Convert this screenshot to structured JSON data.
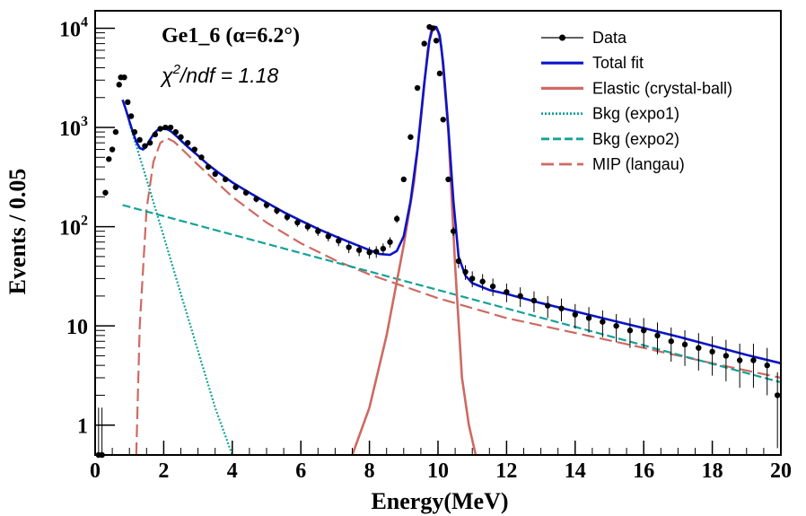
{
  "chart_data": {
    "type": "line",
    "annotations": {
      "title": "Ge1_6 (α=6.2°)",
      "chi2_prefix": "χ",
      "chi2_sup": "2",
      "chi2_rest": "/ndf = 1.18"
    },
    "xlabel": "Energy(MeV)",
    "ylabel": "Events / 0.05",
    "xlim": [
      0,
      20
    ],
    "ylim": [
      0.5,
      15000
    ],
    "yscale": "log",
    "x_ticks": [
      0,
      2,
      4,
      6,
      8,
      10,
      12,
      14,
      16,
      18,
      20
    ],
    "x_tick_labels": [
      "0",
      "2",
      "4",
      "6",
      "8",
      "10",
      "12",
      "14",
      "16",
      "18",
      "20"
    ],
    "y_ticks": [
      {
        "value": 1,
        "base": "1",
        "exp": ""
      },
      {
        "value": 10,
        "base": "10",
        "exp": ""
      },
      {
        "value": 100,
        "base": "10",
        "exp": "2"
      },
      {
        "value": 1000,
        "base": "10",
        "exp": "3"
      },
      {
        "value": 10000,
        "base": "10",
        "exp": "4"
      }
    ],
    "legend_position": "top-right",
    "colors": {
      "data": "#000000",
      "total": "#0a14c8",
      "elastic": "#cd6a62",
      "bkg1": "#13a296",
      "bkg2": "#13a296",
      "mip": "#cd6a62"
    },
    "series": [
      {
        "name": "Data",
        "style": "points",
        "key": "data",
        "x": [
          0.1,
          0.2,
          0.3,
          0.4,
          0.5,
          0.6,
          0.7,
          0.75,
          0.85,
          0.95,
          1.05,
          1.15,
          1.3,
          1.45,
          1.6,
          1.75,
          1.9,
          2.05,
          2.2,
          2.35,
          2.5,
          2.7,
          2.9,
          3.1,
          3.3,
          3.5,
          3.8,
          4.1,
          4.4,
          4.7,
          5.0,
          5.3,
          5.6,
          5.9,
          6.2,
          6.5,
          6.8,
          7.1,
          7.4,
          7.7,
          8.0,
          8.2,
          8.4,
          8.6,
          8.8,
          9.0,
          9.2,
          9.4,
          9.6,
          9.75,
          9.85,
          9.95,
          10.05,
          10.15,
          10.3,
          10.45,
          10.6,
          10.8,
          11.0,
          11.3,
          11.6,
          12.0,
          12.4,
          12.8,
          13.2,
          13.6,
          14.0,
          14.4,
          14.8,
          15.2,
          15.6,
          16.0,
          16.4,
          16.8,
          17.2,
          17.6,
          18.0,
          18.4,
          18.8,
          19.2,
          19.6,
          19.9
        ],
        "y": [
          0.5,
          0.5,
          220,
          480,
          600,
          900,
          2700,
          3200,
          3200,
          1800,
          1300,
          900,
          750,
          650,
          700,
          850,
          970,
          1000,
          1000,
          900,
          800,
          700,
          600,
          500,
          400,
          340,
          300,
          250,
          220,
          190,
          165,
          145,
          125,
          110,
          100,
          90,
          80,
          72,
          62,
          58,
          55,
          56,
          60,
          70,
          120,
          300,
          800,
          2500,
          7000,
          10300,
          10000,
          7500,
          3500,
          1200,
          300,
          90,
          45,
          35,
          30,
          28,
          25,
          22,
          20,
          18,
          16,
          15,
          13,
          12,
          11,
          10,
          9,
          9,
          8,
          7,
          6.5,
          6,
          5.5,
          5,
          4.5,
          4.5,
          4,
          2
        ]
      },
      {
        "name": "Total fit",
        "style": "solid",
        "key": "total",
        "x": [
          0.8,
          0.9,
          1.0,
          1.1,
          1.2,
          1.3,
          1.4,
          1.5,
          1.6,
          1.7,
          1.8,
          1.9,
          2.0,
          2.1,
          2.2,
          2.3,
          2.4,
          2.5,
          2.7,
          3.0,
          3.3,
          3.6,
          4.0,
          4.5,
          5.0,
          5.5,
          6.0,
          6.5,
          7.0,
          7.5,
          8.0,
          8.3,
          8.6,
          8.8,
          9.0,
          9.2,
          9.4,
          9.6,
          9.75,
          9.85,
          9.95,
          10.05,
          10.15,
          10.3,
          10.45,
          10.6,
          10.8,
          11.0,
          11.5,
          12.0,
          13.0,
          14.0,
          15.0,
          16.0,
          17.0,
          18.0,
          19.0,
          20.0
        ],
        "y": [
          1900,
          1500,
          1150,
          900,
          720,
          620,
          600,
          650,
          750,
          850,
          930,
          960,
          970,
          960,
          920,
          860,
          800,
          740,
          640,
          520,
          420,
          350,
          280,
          220,
          175,
          140,
          115,
          95,
          80,
          68,
          58,
          53,
          52,
          57,
          80,
          180,
          600,
          2800,
          7500,
          10200,
          10300,
          8500,
          4500,
          1000,
          180,
          50,
          32,
          27,
          23,
          21,
          17,
          14,
          11.5,
          9.5,
          7.8,
          6.3,
          5.1,
          4.2
        ]
      },
      {
        "name": "Elastic (crystal-ball)",
        "style": "solid",
        "key": "elastic",
        "x": [
          7.5,
          8.0,
          8.5,
          9.0,
          9.3,
          9.5,
          9.7,
          9.8,
          9.9,
          10.0,
          10.1,
          10.3,
          10.5,
          10.7,
          10.9,
          11.1
        ],
        "y": [
          0.5,
          1.5,
          8,
          65,
          280,
          1200,
          6000,
          9500,
          10400,
          9300,
          6500,
          900,
          40,
          3,
          1,
          0.5
        ]
      },
      {
        "name": "Bkg (expo1)",
        "style": "dotted",
        "key": "bkg1",
        "x": [
          1.0,
          1.5,
          2.0,
          2.5,
          3.0,
          3.5,
          4.0
        ],
        "y": [
          1100,
          300,
          80,
          21,
          5.6,
          1.5,
          0.4
        ]
      },
      {
        "name": "Bkg (expo2)",
        "style": "dashed",
        "key": "bkg2",
        "x": [
          0.8,
          20.0
        ],
        "y": [
          165,
          2.7
        ]
      },
      {
        "name": "MIP (langau)",
        "style": "longdash",
        "key": "mip",
        "x": [
          1.2,
          1.3,
          1.5,
          1.7,
          1.9,
          2.1,
          2.3,
          2.5,
          3.0,
          3.5,
          4.0,
          5.0,
          6.0,
          7.0,
          8.0,
          10.0,
          12.0,
          14.0,
          16.0,
          18.0,
          20.0
        ],
        "y": [
          0.5,
          10,
          150,
          450,
          700,
          780,
          720,
          620,
          420,
          290,
          200,
          110,
          68,
          46,
          33,
          19,
          12,
          8.5,
          6,
          4.2,
          3
        ]
      }
    ]
  }
}
